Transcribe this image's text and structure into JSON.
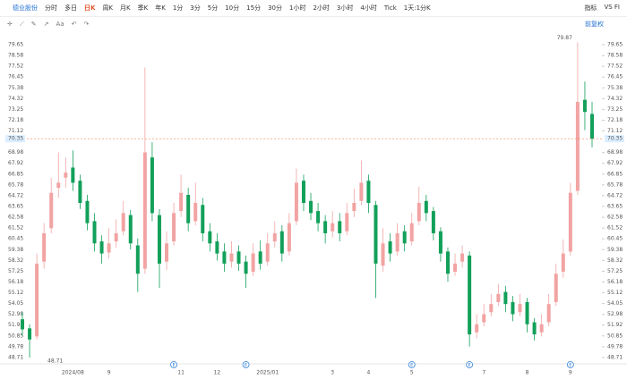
{
  "toolbar": {
    "stock": "德业股份",
    "periods": [
      "分时",
      "多日",
      "日K",
      "周K",
      "月K",
      "季K",
      "年K",
      "1分",
      "3分",
      "5分",
      "10分",
      "15分",
      "30分",
      "1小时",
      "2小时",
      "3小时",
      "4小时",
      "Tick",
      "1天:1分K"
    ],
    "selected": 2,
    "right": [
      "指标",
      "VS FI"
    ]
  },
  "toolbar2": {
    "font": "Aa",
    "adjust": "前复权"
  },
  "chart_data": {
    "type": "candlestick",
    "categories": [
      null,
      null,
      null,
      null,
      null,
      null,
      null,
      "2024/08",
      null,
      null,
      null,
      null,
      "9",
      null,
      null,
      null,
      null,
      null,
      null,
      null,
      null,
      null,
      "11",
      null,
      null,
      null,
      null,
      "12",
      null,
      null,
      null,
      null,
      null,
      null,
      "2025/01",
      null,
      null,
      null,
      null,
      null,
      null,
      null,
      null,
      "3",
      null,
      null,
      null,
      null,
      "4",
      null,
      null,
      null,
      null,
      null,
      "5",
      null,
      null,
      null,
      null,
      null,
      null,
      null,
      null,
      null,
      "7",
      null,
      null,
      null,
      null,
      null,
      "8",
      null,
      null,
      null,
      null,
      null,
      "9",
      null,
      null,
      null
    ],
    "open": [
      52.5,
      51.6,
      50.8,
      58.2,
      61.5,
      65.5,
      66.5,
      67.5,
      66.2,
      64.2,
      62.2,
      60.2,
      59.1,
      60.2,
      61.2,
      62.8,
      59.8,
      57.5,
      68.5,
      62.8,
      58.2,
      60.2,
      63.2,
      64.8,
      62.2,
      63.8,
      61.2,
      60.2,
      59.2,
      58.2,
      59.2,
      58.2,
      57.2,
      59.2,
      58.2,
      60.2,
      61.2,
      59.2,
      62.2,
      66.2,
      64.2,
      63.2,
      62.2,
      61.2,
      62.2,
      61.2,
      63.2,
      64.2,
      66.2,
      63.8,
      57.8,
      60.2,
      59.2,
      61.2,
      60.2,
      62.2,
      64.2,
      63.2,
      61.2,
      59.2,
      57.2,
      58.2,
      58.8,
      51.2,
      52.2,
      53.2,
      54.2,
      55.2,
      54.2,
      53.2,
      54.2,
      52.2,
      51.2,
      52.2,
      54.2,
      57.2,
      59.2,
      65.2,
      74.2,
      72.8
    ],
    "high": [
      53.2,
      52.0,
      59,
      62,
      66.5,
      69,
      68.5,
      69.2,
      66.8,
      64.8,
      63,
      60.8,
      61.5,
      62.4,
      64.2,
      63.3,
      60.5,
      77.4,
      70,
      63.4,
      61.2,
      64,
      66.8,
      65.5,
      66,
      64.5,
      62,
      61,
      60,
      60.2,
      59.8,
      58.8,
      60,
      60.3,
      61,
      62.2,
      61.8,
      63,
      67.4,
      66.8,
      65,
      64,
      62.8,
      63.2,
      63,
      64,
      65.4,
      68.2,
      66.8,
      64.2,
      61.5,
      61,
      62,
      61.8,
      63,
      65.6,
      64.8,
      63.6,
      61.6,
      59.6,
      59,
      59.8,
      59.2,
      53,
      54,
      55,
      56,
      55.8,
      54.8,
      55,
      54.6,
      52.6,
      53,
      55,
      58,
      60.4,
      66,
      79.87,
      76,
      74
    ],
    "low": [
      50.9,
      48.71,
      50.5,
      57.5,
      61,
      64.5,
      65.5,
      65.2,
      63.4,
      61.3,
      59.2,
      58,
      58.5,
      59.6,
      60.8,
      59.4,
      55.2,
      57,
      62.2,
      55.6,
      57.4,
      59.8,
      62.6,
      61.2,
      61.8,
      60.2,
      59.2,
      58.3,
      57.2,
      57.6,
      57.3,
      55.6,
      56.8,
      57.4,
      57.8,
      59.6,
      58.2,
      58.8,
      61.8,
      63.2,
      62.3,
      61.2,
      60,
      60.6,
      60.2,
      60.8,
      62.6,
      63.8,
      63,
      54.6,
      57.2,
      58.2,
      58.8,
      59.2,
      59.8,
      61.8,
      62.2,
      60.3,
      58.2,
      56.2,
      56.8,
      57.6,
      49.8,
      50.6,
      51.8,
      52.8,
      53.8,
      53.2,
      52.3,
      52.8,
      51.2,
      50.4,
      50.8,
      51.8,
      53.8,
      56.6,
      58.8,
      64.8,
      71.2,
      69.5
    ],
    "close": [
      51.5,
      50.5,
      58,
      61,
      65,
      66,
      67,
      66,
      64,
      62,
      60,
      59,
      60,
      61,
      63,
      60,
      57,
      69,
      63,
      58,
      60,
      63,
      65,
      62,
      64,
      61,
      60,
      59,
      58,
      59,
      58,
      57,
      59,
      58,
      60,
      61,
      59,
      62,
      66,
      64,
      63,
      62,
      61,
      62,
      61,
      63,
      64,
      66,
      64,
      58,
      60,
      59,
      61,
      60,
      62,
      64,
      63,
      61,
      59,
      57,
      58,
      59,
      51,
      52,
      53,
      54,
      55,
      54,
      53,
      54,
      52,
      51,
      52,
      54,
      57,
      59,
      65,
      74,
      73,
      70.35
    ],
    "up_color": "#f2a3a3",
    "down_color": "#12a05a",
    "last_color": "#f08a6a",
    "events": [
      "E",
      "E",
      "E",
      "E",
      "E"
    ],
    "ylim": [
      48.27,
      80.71
    ],
    "yticks": [
      79.65,
      78.58,
      77.52,
      76.45,
      75.38,
      74.32,
      73.25,
      72.18,
      71.12,
      68.98,
      67.92,
      66.85,
      65.78,
      64.72,
      63.65,
      62.58,
      61.52,
      60.45,
      59.38,
      58.32,
      57.25,
      56.18,
      55.12,
      54.05,
      52.98,
      51.92,
      50.85,
      49.78,
      48.71
    ]
  }
}
